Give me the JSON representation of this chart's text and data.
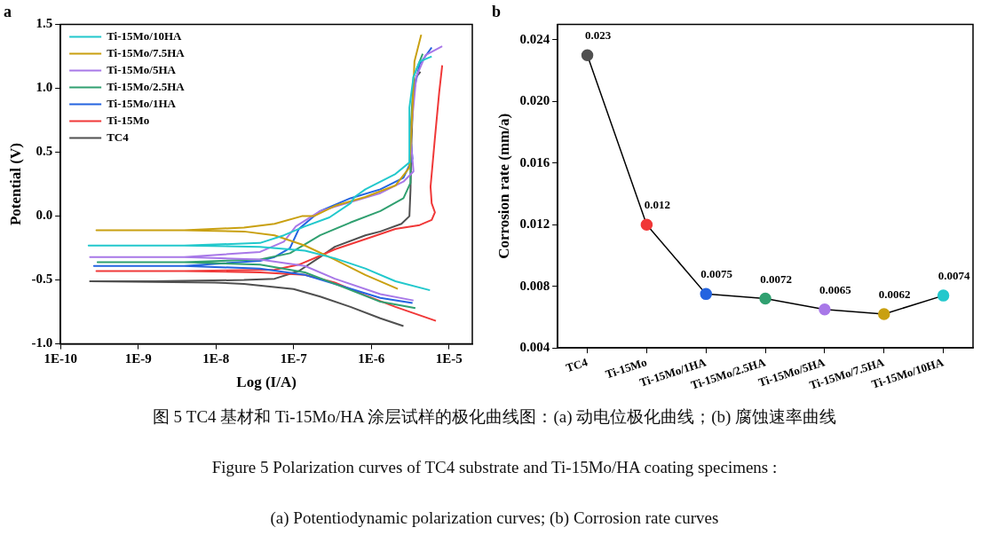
{
  "chart_data": [
    {
      "type": "line",
      "title": "a",
      "xlabel": "Log (I/A)",
      "ylabel": "Potential (V)",
      "log": "x",
      "grid": false,
      "legend": "top left",
      "marker": "none",
      "line_style": "solid",
      "xlim": [
        1e-10,
        2e-05
      ],
      "xticks": [
        {
          "value": 1e-10,
          "label": "1E-10"
        },
        {
          "value": 1e-09,
          "label": "1E-9"
        },
        {
          "value": 1e-08,
          "label": "1E-8"
        },
        {
          "value": 1e-07,
          "label": "1E-7"
        },
        {
          "value": 1e-06,
          "label": "1E-6"
        },
        {
          "value": 1e-05,
          "label": "1E-5"
        }
      ],
      "ylim": [
        -1.0,
        1.5
      ],
      "yticks": [
        {
          "value": -1.0,
          "label": "-1.0"
        },
        {
          "value": -0.5,
          "label": "-0.5"
        },
        {
          "value": 0.0,
          "label": "0.0"
        },
        {
          "value": 0.5,
          "label": "0.5"
        },
        {
          "value": 1.0,
          "label": "1.0"
        },
        {
          "value": 1.5,
          "label": "1.5"
        }
      ],
      "series": [
        {
          "name": "Ti-15Mo/10HA",
          "color": "#22c8cc",
          "x": [
            5.7e-06,
            2.05e-06,
            8.4e-07,
            3.4e-07,
            1.4e-07,
            3.7e-08,
            3.9e-09,
            2.3e-10,
            3.9e-09,
            3.7e-08,
            7.5e-08,
            1.4e-07,
            2.9e-07,
            5.4e-07,
            6.1e-07,
            8.4e-07,
            2.05e-06,
            3.1e-06,
            3.1e-06,
            3.5e-06,
            4.2e-06,
            6e-06
          ],
          "values": [
            -0.58,
            -0.51,
            -0.41,
            -0.33,
            -0.27,
            -0.24,
            -0.23,
            -0.23,
            -0.23,
            -0.21,
            -0.15,
            -0.08,
            -0.01,
            0.1,
            0.15,
            0.21,
            0.33,
            0.42,
            0.85,
            1.09,
            1.21,
            1.25
          ]
        },
        {
          "name": "Ti-15Mo/7.5HA",
          "color": "#c9a010",
          "x": [
            2.2e-06,
            8.4e-07,
            3.4e-07,
            1.4e-07,
            5.7e-08,
            2.3e-08,
            3.9e-09,
            2.9e-10,
            3.9e-09,
            2.3e-08,
            5.7e-08,
            1.28e-07,
            1.83e-07,
            3.4e-07,
            8.4e-07,
            2.05e-06,
            3.1e-06,
            3.4e-06,
            3.6e-06,
            4.4e-06
          ],
          "values": [
            -0.57,
            -0.46,
            -0.34,
            -0.23,
            -0.15,
            -0.12,
            -0.11,
            -0.11,
            -0.11,
            -0.09,
            -0.06,
            0.0,
            0.0,
            0.08,
            0.15,
            0.24,
            0.38,
            0.85,
            1.21,
            1.42
          ]
        },
        {
          "name": "Ti-15Mo/5HA",
          "color": "#a878e8",
          "x": [
            3.5e-06,
            1.31e-06,
            3.4e-07,
            1.4e-07,
            3.7e-08,
            3.9e-09,
            2.4e-10,
            3.9e-09,
            3.7e-08,
            7.5e-08,
            1.07e-07,
            2.2e-07,
            5.4e-07,
            1.31e-06,
            2.6e-06,
            3.5e-06,
            3.2e-06,
            3.8e-06,
            5e-06,
            8.2e-06
          ],
          "values": [
            -0.66,
            -0.61,
            -0.49,
            -0.39,
            -0.34,
            -0.32,
            -0.32,
            -0.32,
            -0.28,
            -0.2,
            -0.08,
            0.04,
            0.11,
            0.18,
            0.27,
            0.35,
            0.62,
            1.09,
            1.26,
            1.33
          ]
        },
        {
          "name": "Ti-15Mo/2.5HA",
          "color": "#30a070",
          "x": [
            3.7e-06,
            1.31e-06,
            3.4e-07,
            1.4e-07,
            3.7e-08,
            3.9e-09,
            3e-10,
            3.9e-09,
            3.7e-08,
            9e-08,
            2.2e-07,
            5.4e-07,
            1.31e-06,
            2.6e-06,
            3.2e-06,
            3.2e-06,
            3.5e-06,
            4.6e-06
          ],
          "values": [
            -0.72,
            -0.67,
            -0.53,
            -0.44,
            -0.38,
            -0.36,
            -0.36,
            -0.36,
            -0.34,
            -0.29,
            -0.15,
            -0.05,
            0.04,
            0.14,
            0.26,
            0.62,
            1.09,
            1.27
          ]
        },
        {
          "name": "Ti-15Mo/1HA",
          "color": "#2464e0",
          "x": [
            3.4e-06,
            1.31e-06,
            3.4e-07,
            1.4e-07,
            3.7e-08,
            3.9e-09,
            2.7e-10,
            3.9e-09,
            3.7e-08,
            5.7e-08,
            9e-08,
            1.17e-07,
            2.2e-07,
            5.4e-07,
            1.31e-06,
            2.6e-06,
            3.4e-06,
            3.2e-06,
            3.5e-06,
            4.2e-06,
            6e-06
          ],
          "values": [
            -0.68,
            -0.64,
            -0.53,
            -0.46,
            -0.41,
            -0.39,
            -0.39,
            -0.39,
            -0.35,
            -0.32,
            -0.25,
            -0.1,
            0.04,
            0.14,
            0.21,
            0.3,
            0.45,
            0.62,
            0.97,
            1.19,
            1.32
          ]
        },
        {
          "name": "Ti-15Mo",
          "color": "#f03838",
          "x": [
            6.8e-06,
            2.05e-06,
            8.4e-07,
            3.4e-07,
            1.4e-07,
            3.7e-08,
            3.9e-09,
            2.9e-10,
            3.9e-09,
            5.7e-08,
            1.17e-07,
            2.2e-07,
            3.4e-07,
            8.4e-07,
            2.05e-06,
            4.2e-06,
            6e-06,
            6.6e-06,
            6e-06,
            5.8e-06,
            6.6e-06,
            7.5e-06,
            8.2e-06
          ],
          "values": [
            -0.82,
            -0.71,
            -0.62,
            -0.52,
            -0.46,
            -0.44,
            -0.43,
            -0.43,
            -0.43,
            -0.42,
            -0.38,
            -0.31,
            -0.26,
            -0.18,
            -0.1,
            -0.07,
            -0.03,
            0.03,
            0.1,
            0.23,
            0.61,
            0.97,
            1.18
          ]
        },
        {
          "name": "TC4",
          "color": "#505050",
          "x": [
            2.6e-06,
            1.31e-06,
            5.4e-07,
            2.2e-07,
            1e-07,
            2.3e-08,
            9.6e-09,
            2.4e-10,
            1.6e-09,
            2.3e-08,
            5.7e-08,
            1.17e-07,
            2.2e-07,
            3.4e-07,
            8.4e-07,
            1.31e-06,
            2.45e-06,
            3.1e-06,
            3.2e-06,
            3.3e-06,
            3.5e-06,
            3.8e-06,
            4.3e-06
          ],
          "values": [
            -0.86,
            -0.8,
            -0.71,
            -0.63,
            -0.57,
            -0.53,
            -0.52,
            -0.51,
            -0.51,
            -0.5,
            -0.49,
            -0.43,
            -0.32,
            -0.24,
            -0.15,
            -0.12,
            -0.06,
            0.0,
            0.2,
            0.6,
            1.0,
            1.09,
            1.13
          ]
        }
      ],
      "annotations": [
        "图 5 TC4 基材和 Ti-15Mo/HA 涂层试样的极化曲线图：(a)  动电位极化曲线；(b)  腐蚀速率曲线",
        "Figure 5 Polarization curves of TC4 substrate and Ti-15Mo/HA coating specimens :",
        "(a) Potentiodynamic polarization curves; (b) Corrosion rate curves"
      ]
    },
    {
      "type": "line",
      "title": "b",
      "ylabel": "Corrosion rate (mm/a)",
      "grid": false,
      "marker": "circle",
      "line_style": "solid",
      "data_labels": true,
      "categories": [
        "TC4",
        "Ti-15Mo",
        "Ti-15Mo/1HA",
        "Ti-15Mo/2.5HA",
        "Ti-15Mo/5HA",
        "Ti-15Mo/7.5HA",
        "Ti-15Mo/10HA"
      ],
      "ylim": [
        0.004,
        0.025
      ],
      "yticks": [
        0.004,
        0.008,
        0.012,
        0.016,
        {
          "value": 0.02,
          "label": "0.020"
        },
        {
          "value": 0.024,
          "label": "0.024"
        }
      ],
      "series": [
        {
          "color": "#000000",
          "colors": [
            "#505050",
            "#f03838",
            "#2464e0",
            "#30a070",
            "#a878e8",
            "#c9a010",
            "#22c8cc"
          ],
          "values": [
            0.023,
            0.012,
            0.0075,
            0.0072,
            0.0065,
            0.0062,
            0.0074
          ]
        }
      ]
    }
  ]
}
